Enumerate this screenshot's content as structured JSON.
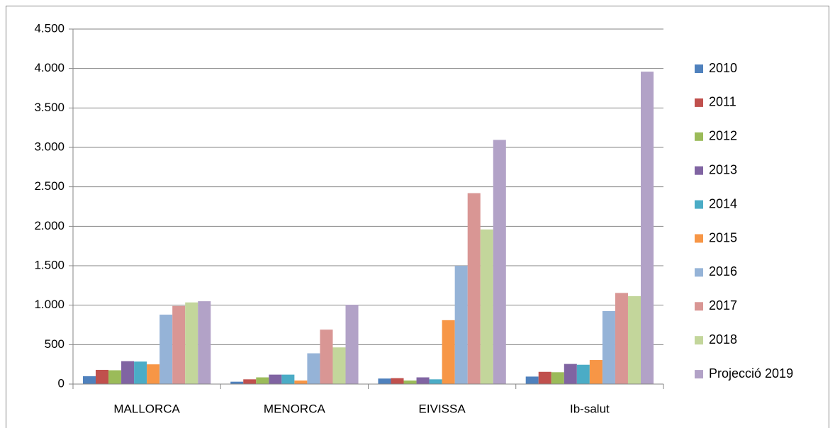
{
  "chart_data": {
    "type": "bar",
    "categories": [
      "MALLORCA",
      "MENORCA",
      "EIVISSA",
      "Ib-salut"
    ],
    "series": [
      {
        "name": "2010",
        "color": "#4F81BD",
        "values": [
          100,
          30,
          70,
          95
        ]
      },
      {
        "name": "2011",
        "color": "#C0504D",
        "values": [
          180,
          60,
          75,
          155
        ]
      },
      {
        "name": "2012",
        "color": "#9BBB59",
        "values": [
          175,
          85,
          45,
          150
        ]
      },
      {
        "name": "2013",
        "color": "#8064A2",
        "values": [
          290,
          120,
          85,
          255
        ]
      },
      {
        "name": "2014",
        "color": "#4BACC6",
        "values": [
          285,
          120,
          60,
          245
        ]
      },
      {
        "name": "2015",
        "color": "#F79646",
        "values": [
          250,
          45,
          810,
          305
        ]
      },
      {
        "name": "2016",
        "color": "#95B3D7",
        "values": [
          880,
          390,
          1500,
          925
        ]
      },
      {
        "name": "2017",
        "color": "#D99694",
        "values": [
          990,
          690,
          2420,
          1155
        ]
      },
      {
        "name": "2018",
        "color": "#C3D69B",
        "values": [
          1035,
          465,
          1960,
          1115
        ]
      },
      {
        "name": "Projecció 2019",
        "color": "#B2A2C7",
        "values": [
          1050,
          1005,
          3095,
          3960
        ]
      }
    ],
    "ylim": [
      0,
      4500
    ],
    "yticks": [
      0,
      500,
      {
        "value": 1000,
        "label": "1.000"
      },
      {
        "value": 1500,
        "label": "1.500"
      },
      {
        "value": 2000,
        "label": "2.000"
      },
      {
        "value": 2500,
        "label": "2.500"
      },
      {
        "value": 3000,
        "label": "3.000"
      },
      {
        "value": 3500,
        "label": "3.500"
      },
      {
        "value": 4000,
        "label": "4.000"
      },
      {
        "value": 4500,
        "label": "4.500"
      }
    ],
    "grid": true,
    "legend": "right"
  }
}
